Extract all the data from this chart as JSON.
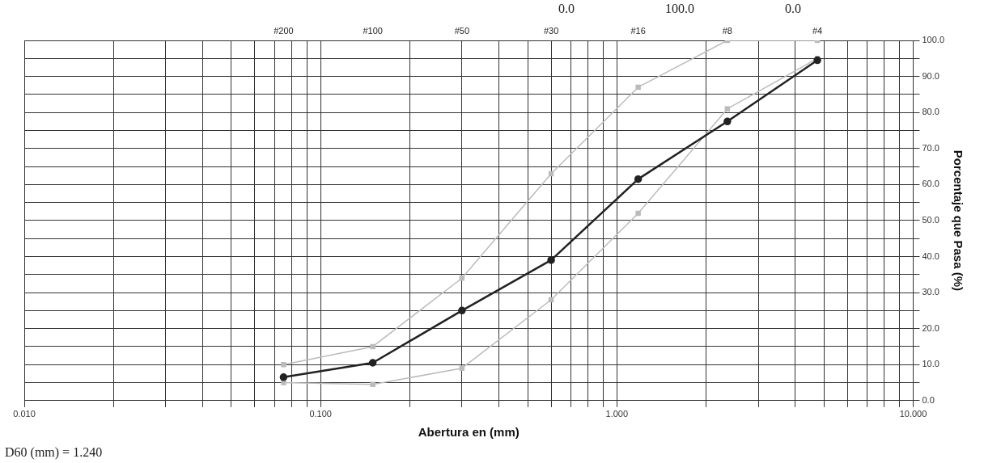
{
  "chart_data": {
    "type": "line",
    "xlabel": "Abertura en (mm)",
    "ylabel": "Porcentaje que Pasa (%)",
    "log": "x",
    "grid": true,
    "legend": false,
    "x": [
      0.075,
      0.15,
      0.3,
      0.6,
      1.18,
      2.36,
      4.75
    ],
    "series": [
      {
        "color": "#bbbbbb",
        "marker": "square",
        "values": [
          10,
          15,
          34,
          63,
          87,
          100,
          100
        ]
      },
      {
        "color": "#bbbbbb",
        "marker": "square",
        "values": [
          5,
          4.5,
          9,
          28,
          52,
          81,
          95
        ]
      },
      {
        "color": "#222222",
        "marker": "circle",
        "values": [
          6.5,
          10.5,
          25,
          39,
          61.5,
          77.5,
          94.5
        ]
      }
    ],
    "xlim": [
      0.01,
      10
    ],
    "xticks": [
      {
        "value": 0.01,
        "label": "0.010"
      },
      {
        "value": 0.02,
        "label": null
      },
      {
        "value": 0.03,
        "label": null
      },
      {
        "value": 0.04,
        "label": null
      },
      {
        "value": 0.05,
        "label": null
      },
      {
        "value": 0.06,
        "label": null
      },
      {
        "value": 0.07,
        "label": null
      },
      {
        "value": 0.08,
        "label": null
      },
      {
        "value": 0.09,
        "label": null
      },
      {
        "value": 0.1,
        "label": "0.100"
      },
      {
        "value": 0.2,
        "label": null
      },
      {
        "value": 0.3,
        "label": null
      },
      {
        "value": 0.4,
        "label": null
      },
      {
        "value": 0.5,
        "label": null
      },
      {
        "value": 0.6,
        "label": null
      },
      {
        "value": 0.7,
        "label": null
      },
      {
        "value": 0.8,
        "label": null
      },
      {
        "value": 0.9,
        "label": null
      },
      {
        "value": 1,
        "label": "1.000"
      },
      {
        "value": 2,
        "label": null
      },
      {
        "value": 3,
        "label": null
      },
      {
        "value": 4,
        "label": null
      },
      {
        "value": 5,
        "label": null
      },
      {
        "value": 6,
        "label": null
      },
      {
        "value": 7,
        "label": null
      },
      {
        "value": 8,
        "label": null
      },
      {
        "value": 9,
        "label": null
      },
      {
        "value": 10,
        "label": "10.000"
      }
    ],
    "ylim": [
      0,
      100
    ],
    "yticks": [
      {
        "value": 0,
        "label": "0.0"
      },
      {
        "value": 5,
        "label": null
      },
      {
        "value": 10,
        "label": "10.0"
      },
      {
        "value": 15,
        "label": null
      },
      {
        "value": 20,
        "label": "20.0"
      },
      {
        "value": 25,
        "label": null
      },
      {
        "value": 30,
        "label": "30.0"
      },
      {
        "value": 35,
        "label": null
      },
      {
        "value": 40,
        "label": "40.0"
      },
      {
        "value": 45,
        "label": null
      },
      {
        "value": 50,
        "label": "50.0"
      },
      {
        "value": 55,
        "label": null
      },
      {
        "value": 60,
        "label": "60.0"
      },
      {
        "value": 65,
        "label": null
      },
      {
        "value": 70,
        "label": "70.0"
      },
      {
        "value": 75,
        "label": null
      },
      {
        "value": 80,
        "label": "80.0"
      },
      {
        "value": 85,
        "label": null
      },
      {
        "value": 90,
        "label": "90.0"
      },
      {
        "value": 95,
        "label": null
      },
      {
        "value": 100,
        "label": "100.0"
      }
    ],
    "annotations": [
      "#200",
      "#100",
      "#50",
      "#30",
      "#16",
      "#8",
      "#4",
      "0.0",
      "100.0",
      "0.0",
      "D60 (mm) = 1.240"
    ]
  }
}
